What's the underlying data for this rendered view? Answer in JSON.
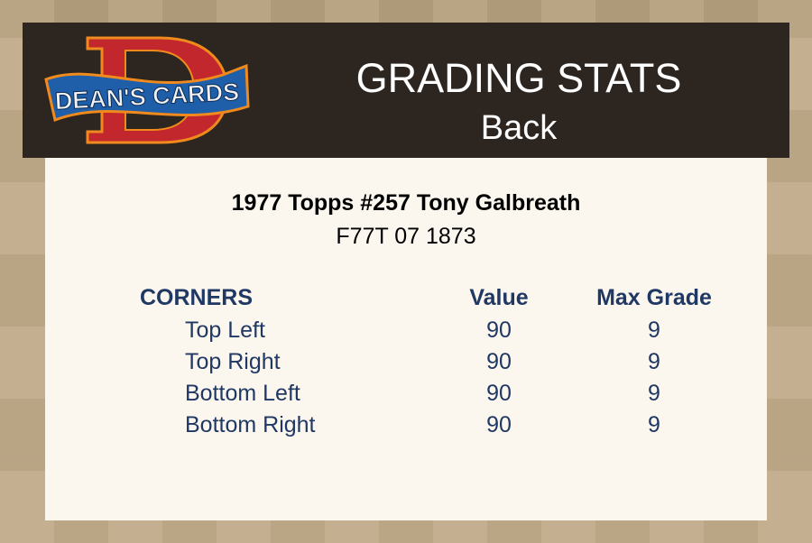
{
  "header": {
    "logo_text": "DEAN'S CARDS",
    "title": "GRADING STATS",
    "subtitle": "Back"
  },
  "card": {
    "name": "1977 Topps #257 Tony Galbreath",
    "cert": "F77T 07 1873"
  },
  "table": {
    "section": "CORNERS",
    "col_value": "Value",
    "col_max": "Max Grade",
    "rows": [
      {
        "label": "Top Left",
        "value": "90",
        "max": "9"
      },
      {
        "label": "Top Right",
        "value": "90",
        "max": "9"
      },
      {
        "label": "Bottom Left",
        "value": "90",
        "max": "9"
      },
      {
        "label": "Bottom Right",
        "value": "90",
        "max": "9"
      }
    ]
  },
  "colors": {
    "header_bg": "#2d2620",
    "panel_bg": "#fcf7ee",
    "table_text": "#1f3864"
  }
}
